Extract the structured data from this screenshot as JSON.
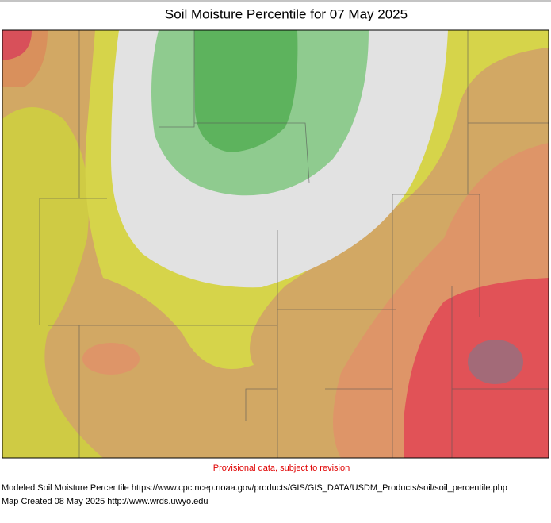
{
  "header": {
    "title": "Soil Moisture Percentile for 07 May 2025"
  },
  "notice": "Provisional data, subject to revision",
  "footer": {
    "lines": [
      "Modeled Soil Moisture Percentile https://www.cpc.ncep.noaa.gov/products/GIS/GIS_DATA/USDM_Products/soil/soil_percentile.php",
      "Map Created 08 May 2025 http://www.wrds.uwyo.edu"
    ]
  }
}
